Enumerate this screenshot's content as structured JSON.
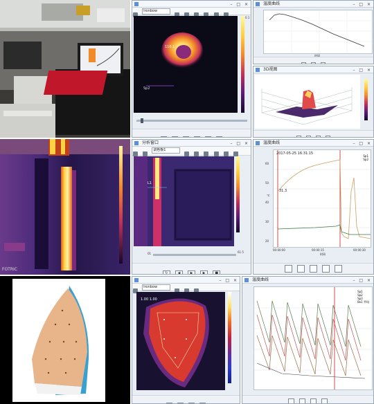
{
  "colors": {
    "ironbow_hot": "#ffe066",
    "ironbow_mid": "#e0405a",
    "ironbow_cold": "#1a0a3a",
    "window_bg": "#e9eef4",
    "ch1_line": "#c8a060",
    "ch2_line": "#3a7a40"
  },
  "icons": [
    "film-icon",
    "folder-icon",
    "zoom-icon",
    "move-icon",
    "cursor-icon",
    "point-tool-icon",
    "rect-tool-icon",
    "ellipse-tool-icon",
    "line-tool-icon",
    "skip-back-icon",
    "step-back-icon",
    "play-icon",
    "step-forward-icon",
    "skip-forward-icon",
    "stop-icon",
    "record-icon"
  ],
  "row1": {
    "photo": {
      "alt": "laptop-on-case"
    },
    "thermal_window": {
      "scale_max": "0.1",
      "readout_point": "110.1",
      "dropdown": "Ironbow"
    },
    "line_chart": {
      "title": "温度曲线",
      "xlabel": "时间"
    },
    "surface_chart": {
      "title": "3D视图"
    }
  },
  "row2": {
    "thermal_image": {
      "brand": "FOTRIC"
    },
    "analysis_window": {
      "title": "分析窗口",
      "palette": "调色板1",
      "time_readout": "01",
      "marker": "L1",
      "value": "61.5"
    },
    "temp_chart": {
      "title": "温度曲线",
      "readout": "2017-05-25 16:31:15",
      "val_label": "31.3",
      "ylabel": "℃",
      "xlabel": "时间",
      "series": [
        {
          "name": "Sp1"
        },
        {
          "name": "Sp2"
        }
      ],
      "yticks": [
        "20",
        "30",
        "40",
        "50",
        "60"
      ],
      "xticks": [
        "00:00:00",
        "00:00:15",
        "00:00:30"
      ]
    }
  },
  "row3": {
    "iron_photo": {
      "alt": "steam-iron"
    },
    "iron_thermal": {
      "title": "热图",
      "dropdown": "Ironbow",
      "readout": "1.00 1.00"
    },
    "cycle_chart": {
      "title": "温度曲线",
      "legend": [
        "Sp1",
        "Sp2",
        "Sp3",
        "Bx1 平均"
      ]
    }
  }
}
